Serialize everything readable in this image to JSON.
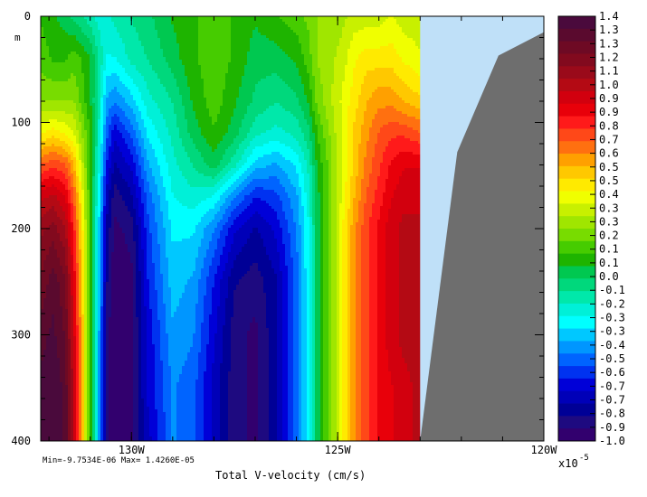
{
  "chart_data": {
    "type": "heatmap",
    "subtype": "filled-contour-section",
    "xlabel": "Total V-velocity (cm/s)",
    "stats_text": "Min=-9.7534E-06  Max= 1.4260E-05",
    "y_unit_label": "m",
    "x_ticks": [
      {
        "lon": -130,
        "label": "130W"
      },
      {
        "lon": -125,
        "label": "125W"
      },
      {
        "lon": -120,
        "label": "120W"
      }
    ],
    "y_ticks": [
      {
        "depth": 0,
        "label": "0"
      },
      {
        "depth": 100,
        "label": "100"
      },
      {
        "depth": 200,
        "label": "200"
      },
      {
        "depth": 300,
        "label": "300"
      },
      {
        "depth": 400,
        "label": "400"
      }
    ],
    "xlim": [
      -132.2,
      -120
    ],
    "ylim": [
      0,
      400
    ],
    "y_inverted": true,
    "colorbar": {
      "exponent_label": "x10",
      "exponent_power": "-5",
      "labels": [
        "1.4",
        "1.3",
        "1.3",
        "1.2",
        "1.1",
        "1.0",
        "0.9",
        "0.9",
        "0.8",
        "0.7",
        "0.6",
        "0.5",
        "0.5",
        "0.4",
        "0.3",
        "0.3",
        "0.2",
        "0.1",
        "0.1",
        "0.0",
        "-0.1",
        "-0.2",
        "-0.3",
        "-0.3",
        "-0.4",
        "-0.5",
        "-0.6",
        "-0.7",
        "-0.7",
        "-0.8",
        "-0.9",
        "-1.0"
      ],
      "colors": [
        "#4a0a3c",
        "#5a0a2e",
        "#6e0a24",
        "#820a1e",
        "#9a0a1a",
        "#b40a14",
        "#d2000e",
        "#e8000a",
        "#ff1a1a",
        "#ff4818",
        "#ff7010",
        "#ffa000",
        "#ffc800",
        "#ffea00",
        "#f0ff00",
        "#c8f000",
        "#a0e600",
        "#78dc00",
        "#46cc00",
        "#1eb400",
        "#00c850",
        "#00d87c",
        "#00e8aa",
        "#00f0d8",
        "#00ffff",
        "#00c8ff",
        "#0096ff",
        "#0064ff",
        "#0032f0",
        "#0000d8",
        "#0000b8",
        "#000096",
        "#1e0a80",
        "#32006e"
      ]
    },
    "land_color": "#6e6e6e",
    "nodata_color": "#bfe0f8",
    "columns_lon": [
      -132.2,
      -131.9,
      -131.6,
      -131.4,
      -131.2,
      -131.0,
      -130.8,
      -130.6,
      -130.4,
      -130.0,
      -129.6,
      -129.0,
      -128.5,
      -128.0,
      -127.5,
      -127.0,
      -126.5,
      -126.0,
      -125.7,
      -125.5,
      -125.2,
      -124.9,
      -124.6,
      -124.3,
      -124.0,
      -123.7,
      -123.4,
      -123.0
    ],
    "rows_depth": [
      0,
      40,
      80,
      110,
      140,
      170,
      200,
      250,
      300,
      350,
      400
    ],
    "values": [
      [
        0.05,
        0.0,
        -0.05,
        -0.1,
        -0.15,
        -0.2,
        -0.25,
        -0.25,
        -0.2,
        -0.15,
        -0.1,
        0.0,
        0.05,
        0.1,
        0.05,
        0.0,
        0.05,
        0.1,
        0.15,
        0.2,
        0.2,
        0.25,
        0.3,
        0.3,
        0.3,
        0.35,
        0.3,
        0.3
      ],
      [
        0.1,
        0.05,
        0.05,
        0.1,
        0.05,
        0.0,
        -0.15,
        -0.3,
        -0.3,
        -0.2,
        -0.15,
        -0.05,
        0.05,
        0.1,
        0.05,
        -0.05,
        -0.05,
        0.0,
        0.1,
        0.2,
        0.25,
        0.3,
        0.4,
        0.45,
        0.45,
        0.45,
        0.4,
        0.35
      ],
      [
        0.2,
        0.2,
        0.2,
        0.2,
        0.1,
        0.0,
        -0.2,
        -0.45,
        -0.5,
        -0.4,
        -0.25,
        -0.15,
        0.0,
        0.1,
        0.0,
        -0.1,
        -0.15,
        -0.1,
        0.0,
        0.15,
        0.25,
        0.35,
        0.45,
        0.55,
        0.6,
        0.6,
        0.55,
        0.5
      ],
      [
        0.4,
        0.45,
        0.4,
        0.35,
        0.2,
        0.05,
        -0.2,
        -0.55,
        -0.7,
        -0.55,
        -0.35,
        -0.2,
        -0.05,
        0.05,
        -0.05,
        -0.2,
        -0.25,
        -0.2,
        -0.1,
        0.05,
        0.2,
        0.35,
        0.5,
        0.6,
        0.7,
        0.75,
        0.75,
        0.7
      ],
      [
        0.7,
        0.75,
        0.7,
        0.55,
        0.3,
        0.05,
        -0.25,
        -0.65,
        -0.8,
        -0.7,
        -0.45,
        -0.25,
        -0.15,
        -0.05,
        -0.2,
        -0.4,
        -0.45,
        -0.35,
        -0.2,
        0.0,
        0.15,
        0.35,
        0.5,
        0.65,
        0.75,
        0.85,
        0.9,
        0.9
      ],
      [
        0.95,
        1.0,
        0.9,
        0.7,
        0.4,
        0.05,
        -0.3,
        -0.75,
        -0.9,
        -0.8,
        -0.55,
        -0.3,
        -0.25,
        -0.3,
        -0.5,
        -0.65,
        -0.6,
        -0.45,
        -0.25,
        -0.05,
        0.15,
        0.35,
        0.55,
        0.7,
        0.8,
        0.9,
        0.95,
        0.95
      ],
      [
        1.1,
        1.15,
        1.05,
        0.8,
        0.45,
        0.05,
        -0.35,
        -0.8,
        -0.95,
        -0.9,
        -0.6,
        -0.35,
        -0.35,
        -0.5,
        -0.7,
        -0.8,
        -0.7,
        -0.5,
        -0.3,
        -0.05,
        0.15,
        0.4,
        0.6,
        0.75,
        0.85,
        0.95,
        1.0,
        1.0
      ],
      [
        1.2,
        1.3,
        1.2,
        0.9,
        0.5,
        0.05,
        -0.35,
        -0.85,
        -1.0,
        -0.95,
        -0.65,
        -0.4,
        -0.45,
        -0.65,
        -0.85,
        -0.9,
        -0.8,
        -0.55,
        -0.3,
        -0.05,
        0.15,
        0.4,
        0.6,
        0.75,
        0.85,
        0.95,
        1.0,
        1.0
      ],
      [
        1.3,
        1.35,
        1.25,
        0.95,
        0.55,
        0.05,
        -0.4,
        -0.9,
        -1.0,
        -0.95,
        -0.7,
        -0.45,
        -0.5,
        -0.7,
        -0.9,
        -0.95,
        -0.8,
        -0.55,
        -0.3,
        -0.05,
        0.15,
        0.4,
        0.6,
        0.75,
        0.85,
        0.95,
        1.0,
        1.0
      ],
      [
        1.35,
        1.4,
        1.3,
        1.0,
        0.55,
        0.05,
        -0.4,
        -0.9,
        -1.0,
        -0.95,
        -0.7,
        -0.5,
        -0.55,
        -0.75,
        -0.9,
        -0.95,
        -0.8,
        -0.55,
        -0.3,
        -0.05,
        0.15,
        0.4,
        0.6,
        0.75,
        0.85,
        0.9,
        0.95,
        1.0
      ],
      [
        1.35,
        1.4,
        1.3,
        1.0,
        0.55,
        0.05,
        -0.4,
        -0.9,
        -1.0,
        -0.95,
        -0.75,
        -0.5,
        -0.55,
        -0.75,
        -0.9,
        -0.95,
        -0.8,
        -0.55,
        -0.3,
        -0.05,
        0.15,
        0.4,
        0.6,
        0.75,
        0.85,
        0.9,
        0.95,
        1.0
      ]
    ],
    "nodata_region_lon": [
      -123.0,
      -120.0
    ],
    "land_polygon": [
      {
        "lon": -123.0,
        "depth": 400
      },
      {
        "lon": -122.1,
        "depth": 128
      },
      {
        "lon": -121.1,
        "depth": 37
      },
      {
        "lon": -120.0,
        "depth": 15
      },
      {
        "lon": -120.0,
        "depth": 400
      }
    ]
  }
}
